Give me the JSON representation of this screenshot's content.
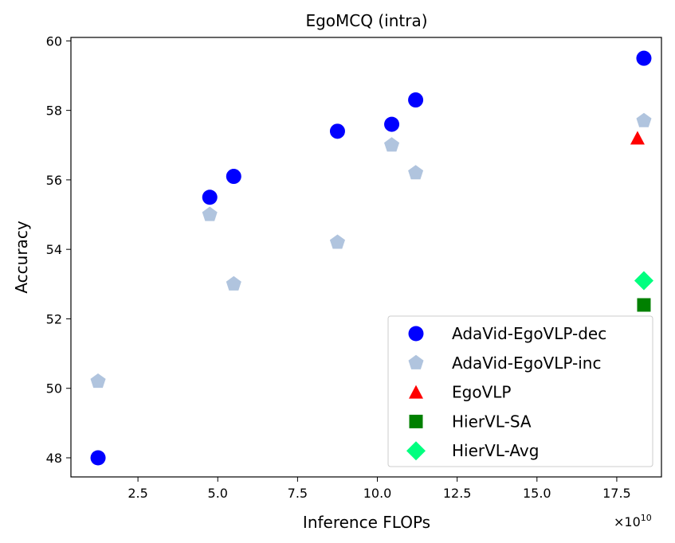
{
  "chart_data": {
    "type": "scatter",
    "title": "EgoMCQ (intra)",
    "xlabel": "Inference FLOPs",
    "ylabel": "Accuracy",
    "x_scale_label": "×10",
    "x_scale_exponent": "10",
    "xlim": [
      0.4,
      18.9
    ],
    "ylim": [
      47.45,
      60.1
    ],
    "xticks": [
      "2.5",
      "5.0",
      "7.5",
      "10.0",
      "12.5",
      "15.0",
      "17.5"
    ],
    "xtick_values": [
      2.5,
      5.0,
      7.5,
      10.0,
      12.5,
      15.0,
      17.5
    ],
    "yticks": [
      "48",
      "50",
      "52",
      "54",
      "56",
      "58",
      "60"
    ],
    "ytick_values": [
      48,
      50,
      52,
      54,
      56,
      58,
      60
    ],
    "grid": false,
    "legend_position": "lower-right",
    "series": [
      {
        "name": "AdaVid-EgoVLP-dec",
        "marker": "circle",
        "color": "#0000ff",
        "points": [
          {
            "x": 1.25,
            "y": 48.0
          },
          {
            "x": 4.75,
            "y": 55.5
          },
          {
            "x": 5.5,
            "y": 56.1
          },
          {
            "x": 8.75,
            "y": 57.4
          },
          {
            "x": 10.45,
            "y": 57.6
          },
          {
            "x": 11.2,
            "y": 58.3
          },
          {
            "x": 18.35,
            "y": 59.5
          }
        ]
      },
      {
        "name": "AdaVid-EgoVLP-inc",
        "marker": "pentagon",
        "color": "#b0c4de",
        "points": [
          {
            "x": 1.25,
            "y": 50.2
          },
          {
            "x": 4.75,
            "y": 55.0
          },
          {
            "x": 5.5,
            "y": 53.0
          },
          {
            "x": 8.75,
            "y": 54.2
          },
          {
            "x": 10.45,
            "y": 57.0
          },
          {
            "x": 11.2,
            "y": 56.2
          },
          {
            "x": 18.35,
            "y": 57.7
          }
        ]
      },
      {
        "name": "EgoVLP",
        "marker": "triangle",
        "color": "#ff0000",
        "points": [
          {
            "x": 18.15,
            "y": 57.2
          }
        ]
      },
      {
        "name": "HierVL-SA",
        "marker": "square",
        "color": "#008000",
        "points": [
          {
            "x": 18.35,
            "y": 52.4
          }
        ]
      },
      {
        "name": "HierVL-Avg",
        "marker": "diamond",
        "color": "#00ff7f",
        "points": [
          {
            "x": 18.35,
            "y": 53.1
          }
        ]
      }
    ]
  }
}
